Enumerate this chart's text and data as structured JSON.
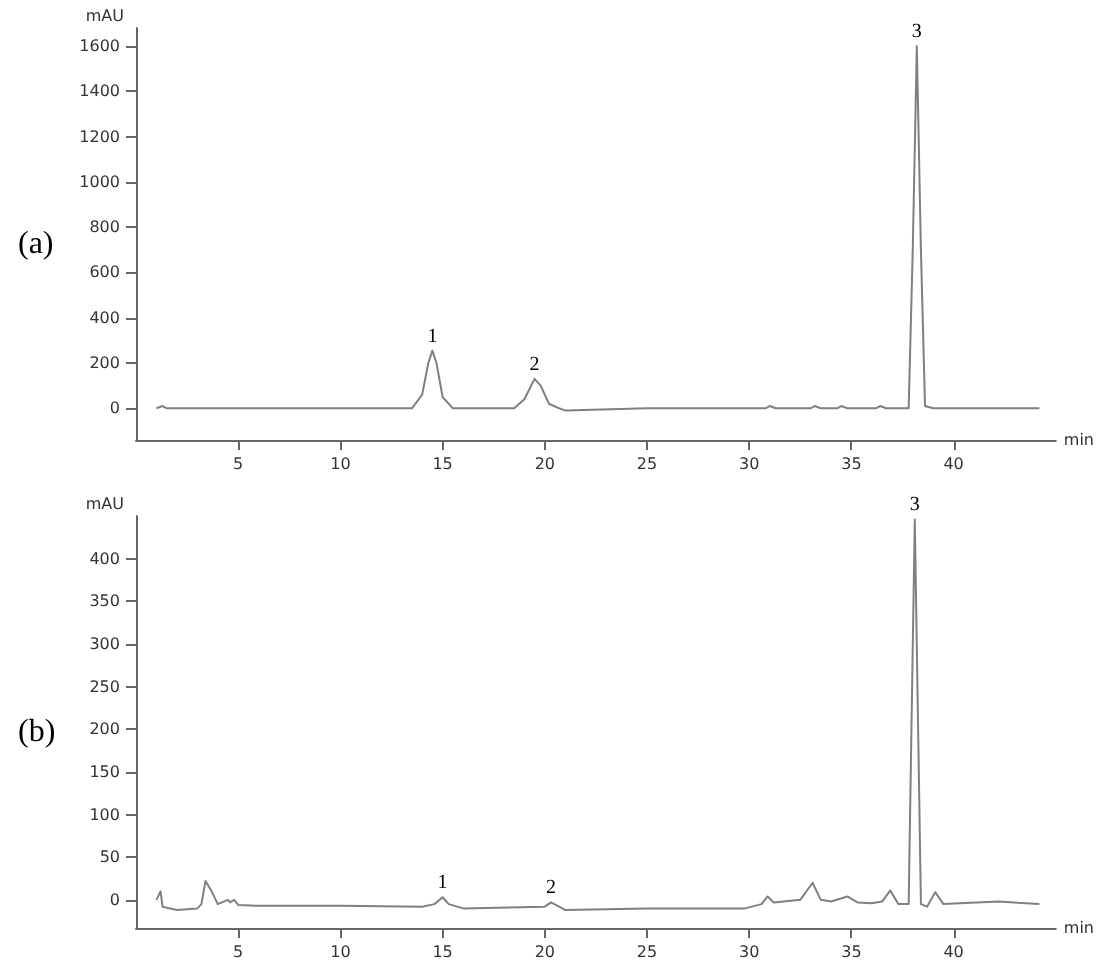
{
  "chart_data": [
    {
      "type": "line",
      "title": "(a)",
      "xlabel": "min",
      "ylabel": "mAU",
      "xlim": [
        0,
        45
      ],
      "ylim": [
        -140,
        1680
      ],
      "xticks": [
        5,
        10,
        15,
        20,
        25,
        30,
        35,
        40
      ],
      "yticks": [
        0,
        200,
        400,
        600,
        800,
        1000,
        1200,
        1400,
        1600
      ],
      "marker": "none",
      "line_style": "solid",
      "series": [
        {
          "color": "#808080",
          "x": [
            1,
            1.3,
            1.5,
            3,
            12.5,
            13.5,
            14,
            14.3,
            14.5,
            14.7,
            15,
            15.5,
            17.7,
            18.5,
            19,
            19.5,
            19.8,
            20.2,
            20.7,
            21,
            25,
            30.8,
            31,
            31.3,
            33,
            33.2,
            33.5,
            34.3,
            34.5,
            34.8,
            36.2,
            36.4,
            36.7,
            37.8,
            38,
            38.2,
            38.4,
            38.6,
            39,
            44.2
          ],
          "values": [
            0,
            10,
            0,
            0,
            0,
            0,
            60,
            200,
            255,
            200,
            50,
            0,
            0,
            0,
            40,
            130,
            100,
            20,
            0,
            -10,
            0,
            0,
            10,
            0,
            0,
            10,
            0,
            0,
            10,
            0,
            0,
            10,
            0,
            0,
            700,
            1600,
            700,
            10,
            0,
            0
          ]
        }
      ],
      "annotations": [
        {
          "text": "1",
          "x": 14.5,
          "y": 255
        },
        {
          "text": "2",
          "x": 19.5,
          "y": 130
        },
        {
          "text": "3",
          "x": 38.2,
          "y": 1600
        }
      ]
    },
    {
      "type": "line",
      "title": "(b)",
      "xlabel": "min",
      "ylabel": "mAU",
      "xlim": [
        0,
        45
      ],
      "ylim": [
        -33,
        450
      ],
      "xticks": [
        5,
        10,
        15,
        20,
        25,
        30,
        35,
        40
      ],
      "yticks": [
        0,
        50,
        100,
        150,
        200,
        250,
        300,
        350,
        400
      ],
      "marker": "none",
      "line_style": "solid",
      "series": [
        {
          "color": "#808080",
          "x": [
            1,
            1.2,
            1.3,
            2,
            3,
            3.2,
            3.4,
            3.7,
            4,
            4.5,
            4.6,
            4.8,
            5,
            6,
            10,
            14,
            14.6,
            15,
            15.3,
            16,
            20,
            20.3,
            20.7,
            21,
            25,
            29.8,
            30.6,
            30.9,
            31.2,
            32.5,
            33.1,
            33.5,
            34,
            34.8,
            35.3,
            36,
            36.5,
            36.9,
            37.3,
            37.8,
            38.1,
            38.4,
            38.7,
            39.1,
            39.5,
            42.2,
            44.2
          ],
          "values": [
            0,
            10,
            -8,
            -12,
            -10,
            -5,
            22,
            10,
            -5,
            0,
            -3,
            0,
            -6,
            -7,
            -7,
            -8,
            -5,
            3,
            -5,
            -10,
            -8,
            -3,
            -8,
            -12,
            -10,
            -10,
            -5,
            4,
            -3,
            0,
            20,
            0,
            -2,
            4,
            -3,
            -4,
            -2,
            11,
            -5,
            -5,
            446,
            -5,
            -8,
            9,
            -5,
            -2,
            -5
          ]
        }
      ],
      "annotations": [
        {
          "text": "1",
          "x": 15,
          "y": 3
        },
        {
          "text": "2",
          "x": 20.3,
          "y": -3
        },
        {
          "text": "3",
          "x": 38.1,
          "y": 446
        }
      ]
    }
  ]
}
